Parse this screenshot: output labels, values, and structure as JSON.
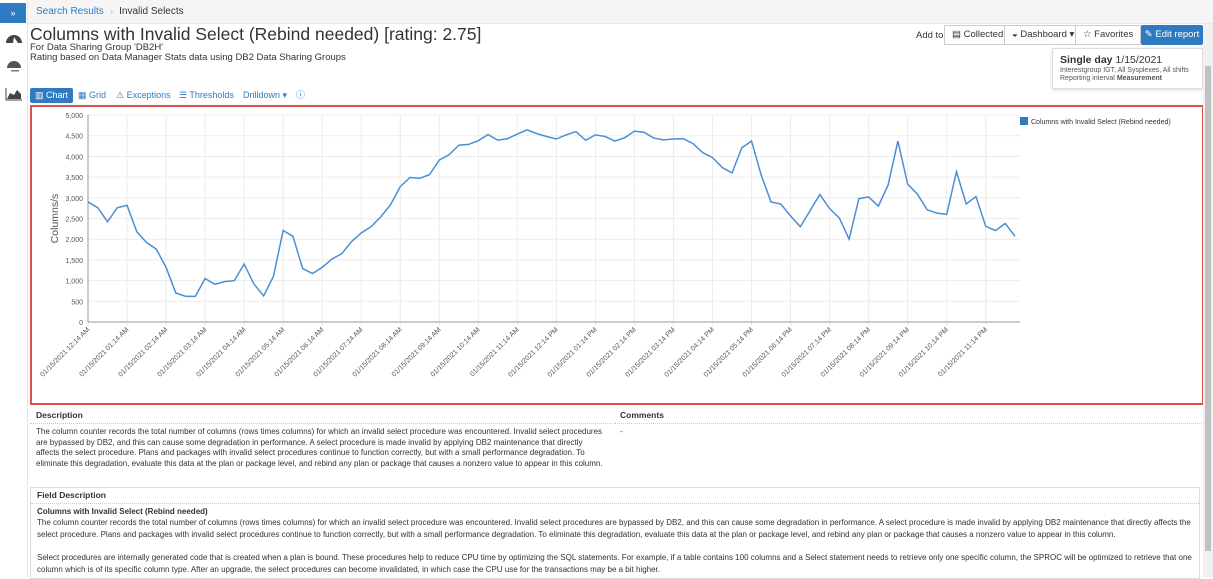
{
  "breadcrumb": {
    "items": [
      "Search Results",
      "Invalid Selects"
    ]
  },
  "sidebar": {
    "toggle": "»",
    "icons": [
      "dashboard-icon",
      "gauge-icon",
      "area-chart-icon"
    ]
  },
  "header": {
    "title": "Columns with Invalid Select (Rebind needed) [rating: 2.75]",
    "subtitle1": "For Data Sharing Group 'DB2H'",
    "subtitle2": "Rating based on Data Manager Stats data using DB2 Data Sharing Groups"
  },
  "toolbar": {
    "add_to": "Add to:",
    "collected": "Collected",
    "dashboard": "Dashboard ▾",
    "favorites": "☆ Favorites",
    "edit": "Edit report"
  },
  "period": {
    "label": "Single day",
    "date": "1/15/2021",
    "line2": "Interestgroup IGT, All Sysplexes, All shifts",
    "line3_label": "Reporting interval",
    "line3_value": "Measurement"
  },
  "tabs": [
    {
      "label": "Chart"
    },
    {
      "label": "Grid"
    },
    {
      "label": "Exceptions"
    },
    {
      "label": "Thresholds"
    },
    {
      "label": "Drilldown ▾"
    }
  ],
  "colors": {
    "accent": "#2f7bc2",
    "line": "#4a8fd4",
    "highlight": "#d9534f"
  },
  "chart_data": {
    "type": "line",
    "title": "",
    "xlabel": "",
    "ylabel": "Columns/s",
    "ylim": [
      0,
      5000
    ],
    "yticks": [
      0,
      500,
      1000,
      1500,
      2000,
      2500,
      3000,
      3500,
      4000,
      4500,
      5000
    ],
    "ytick_labels": [
      "0",
      "500",
      "1,000",
      "1,500",
      "2,000",
      "2,500",
      "3,000",
      "3,500",
      "4,000",
      "4,500",
      "5,000"
    ],
    "interval_minutes": 15,
    "xtick_labels": [
      "01/15/2021 12:14 AM",
      "01/15/2021 01:14 AM",
      "01/15/2021 02:14 AM",
      "01/15/2021 03:14 AM",
      "01/15/2021 04:14 AM",
      "01/15/2021 05:14 AM",
      "01/15/2021 06:14 AM",
      "01/15/2021 07:14 AM",
      "01/15/2021 08:14 AM",
      "01/15/2021 09:14 AM",
      "01/15/2021 10:14 AM",
      "01/15/2021 11:14 AM",
      "01/15/2021 12:14 PM",
      "01/15/2021 01:14 PM",
      "01/15/2021 02:14 PM",
      "01/15/2021 03:14 PM",
      "01/15/2021 04:14 PM",
      "01/15/2021 05:14 PM",
      "01/15/2021 06:14 PM",
      "01/15/2021 07:14 PM",
      "01/15/2021 08:14 PM",
      "01/15/2021 09:14 PM",
      "01/15/2021 10:14 PM",
      "01/15/2021 11:14 PM"
    ],
    "legend": "top-right",
    "grid": true,
    "series": [
      {
        "name": "Columns with Invalid Select (Rebind needed)",
        "values": [
          2900,
          2760,
          2420,
          2760,
          2820,
          2180,
          1920,
          1760,
          1320,
          700,
          620,
          620,
          1050,
          910,
          975,
          1000,
          1400,
          920,
          630,
          1100,
          2210,
          2070,
          1290,
          1170,
          1320,
          1520,
          1650,
          1940,
          2150,
          2300,
          2540,
          2830,
          3270,
          3490,
          3470,
          3560,
          3910,
          4040,
          4270,
          4290,
          4380,
          4530,
          4390,
          4430,
          4540,
          4640,
          4550,
          4480,
          4420,
          4520,
          4600,
          4390,
          4520,
          4480,
          4370,
          4450,
          4610,
          4580,
          4440,
          4400,
          4420,
          4430,
          4310,
          4090,
          3970,
          3730,
          3600,
          4210,
          4370,
          3540,
          2900,
          2850,
          2560,
          2300,
          2690,
          3080,
          2740,
          2510,
          2000,
          2980,
          3020,
          2800,
          3310,
          4370,
          3330,
          3090,
          2710,
          2630,
          2600,
          3630,
          2850,
          3030,
          2310,
          2210,
          2380,
          2070
        ]
      }
    ]
  },
  "description": {
    "header": "Description",
    "text": "The column counter records the total number of columns (rows times columns) for which an invalid select procedure was encountered. Invalid select procedures are bypassed by DB2, and this can cause some degradation in performance. A select procedure is made invalid by applying DB2 maintenance that directly affects the select procedure. Plans and packages with invalid select procedures continue to function correctly, but with a small performance degradation. To eliminate this degradation, evaluate this data at the plan or package level, and rebind any plan or package that causes a nonzero value to appear in this column."
  },
  "comments": {
    "header": "Comments",
    "text": "-"
  },
  "field_description": {
    "header": "Field Description",
    "name": "Columns with Invalid Select (Rebind needed)",
    "text1": "The column counter records the total number of columns (rows times columns) for which an invalid select procedure was encountered. Invalid select procedures are bypassed by DB2, and this can cause some degradation in performance. A select procedure is made invalid by applying DB2 maintenance that directly affects the select procedure. Plans and packages with invalid select procedures continue to function correctly, but with a small performance degradation. To eliminate this degradation, evaluate this data at the plan or package level, and rebind any plan or package that causes a nonzero value to appear in this column.",
    "text2": "Select procedures are internally generated code that is created when a plan is bound. These procedures help to reduce CPU time by optimizing the SQL statements. For example, if a table contains 100 columns and a Select statement needs to retrieve only one specific column, the SPROC will be optimized to retrieve that one column which is of its specific column type. After an upgrade, the select procedures can become invalidated, in which case the CPU use for the transactions may be a bit higher."
  }
}
